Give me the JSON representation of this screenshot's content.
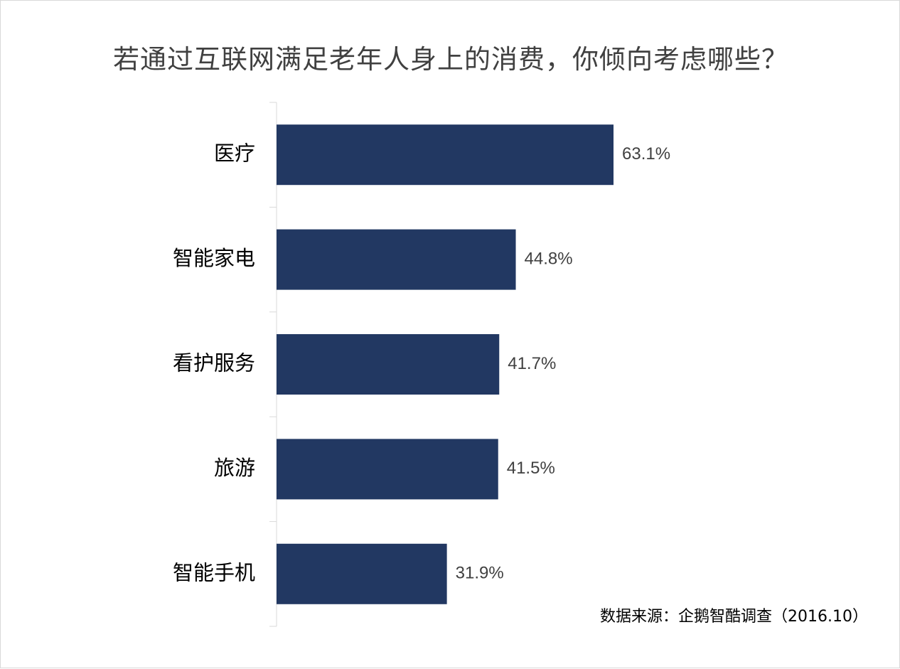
{
  "chart_data": {
    "type": "bar",
    "orientation": "horizontal",
    "title": "若通过互联网满足老年人身上的消费，你倾向考虑哪些？",
    "categories": [
      "医疗",
      "智能家电",
      "看护服务",
      "旅游",
      "智能手机"
    ],
    "values": [
      63.1,
      44.8,
      41.7,
      41.5,
      31.9
    ],
    "value_labels": [
      "63.1%",
      "44.8%",
      "41.7%",
      "41.5%",
      "31.9%"
    ],
    "xlim": [
      0,
      100
    ],
    "grid": false,
    "bar_color": "#223862"
  },
  "source": "数据来源：企鹅智酷调查（2016.10）"
}
